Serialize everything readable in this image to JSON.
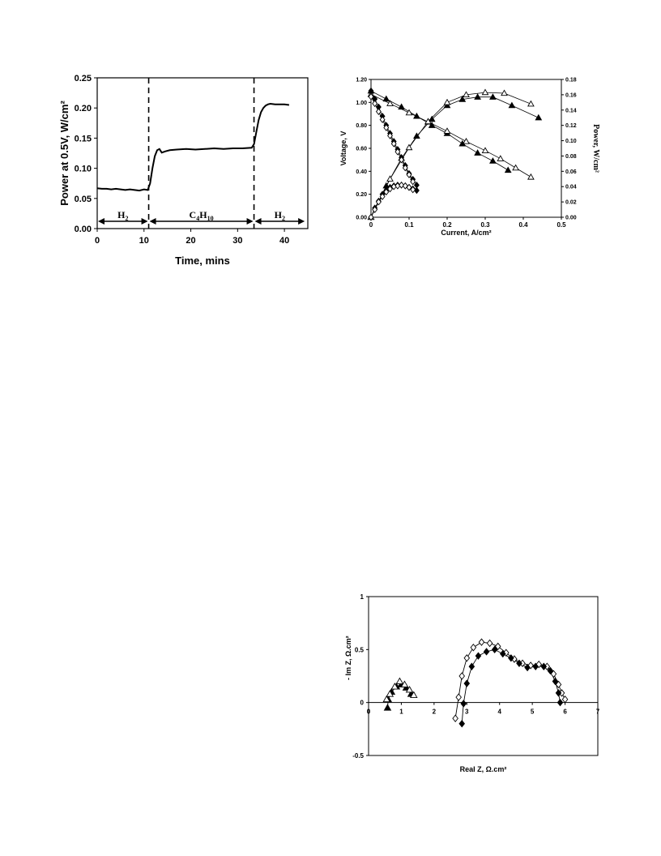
{
  "chart_data": [
    {
      "type": "line",
      "title": "",
      "xlabel": "Time, mins",
      "ylabel": "Power at 0.5V, W/cm²",
      "xlim": [
        0,
        45
      ],
      "ylim": [
        0,
        0.25
      ],
      "xticks": [
        0,
        10,
        20,
        30,
        40
      ],
      "yticks": [
        0.0,
        0.05,
        0.1,
        0.15,
        0.2,
        0.25
      ],
      "xtick_labels": [
        "0",
        "10",
        "20",
        "30",
        "40"
      ],
      "ytick_labels": [
        "0.00",
        "0.05",
        "0.10",
        "0.15",
        "0.20",
        "0.25"
      ],
      "grid": false,
      "series": [
        {
          "x": [
            0,
            1,
            2,
            3,
            4,
            5,
            6,
            7,
            8,
            9,
            10,
            10.8,
            11.3,
            11.8,
            12.3,
            12.8,
            13.3,
            13.8,
            14.5,
            15.5,
            17,
            19,
            21,
            23,
            25,
            27,
            29,
            31,
            33,
            33.5,
            34,
            34.5,
            35,
            35.5,
            36,
            36.5,
            37,
            38,
            39,
            40,
            41
          ],
          "y": [
            0.067,
            0.066,
            0.066,
            0.065,
            0.066,
            0.065,
            0.064,
            0.065,
            0.064,
            0.063,
            0.065,
            0.064,
            0.075,
            0.1,
            0.12,
            0.13,
            0.132,
            0.126,
            0.128,
            0.13,
            0.131,
            0.132,
            0.131,
            0.132,
            0.133,
            0.132,
            0.133,
            0.133,
            0.134,
            0.14,
            0.16,
            0.18,
            0.193,
            0.2,
            0.204,
            0.206,
            0.207,
            0.206,
            0.206,
            0.206,
            0.205
          ]
        }
      ],
      "vlines": [
        11,
        33.5
      ],
      "annotations": [
        {
          "base": "H",
          "sub": "2",
          "x_from": 0,
          "x_to": 11
        },
        {
          "base": "C",
          "sub": "4",
          "base2": "H",
          "sub2": "10",
          "x_from": 11,
          "x_to": 33.5
        },
        {
          "base": "H",
          "sub": "2",
          "x_from": 33.5,
          "x_to": 44.5
        }
      ]
    },
    {
      "type": "line",
      "title": "",
      "xlabel": "Current, A/cm²",
      "ylabel": "Voltage, V",
      "y2label": "Power, W/cm²",
      "xlim": [
        0,
        0.5
      ],
      "ylim": [
        0,
        1.2
      ],
      "y2lim": [
        0,
        0.18
      ],
      "xtick_labels": [
        "0",
        "0.1",
        "0.2",
        "0.3",
        "0.4",
        "0.5"
      ],
      "ytick_labels": [
        "0.00",
        "0.20",
        "0.40",
        "0.60",
        "0.80",
        "1.00",
        "1.20"
      ],
      "y2tick_labels": [
        "0.00",
        "0.02",
        "0.04",
        "0.06",
        "0.08",
        "0.10",
        "0.12",
        "0.14",
        "0.16",
        "0.18"
      ],
      "grid": false,
      "series": [
        {
          "marker": "filled-triangle",
          "axis": "left",
          "x": [
            0,
            0.04,
            0.08,
            0.12,
            0.16,
            0.2,
            0.24,
            0.28,
            0.32,
            0.36
          ],
          "y": [
            1.1,
            1.03,
            0.96,
            0.88,
            0.8,
            0.73,
            0.64,
            0.56,
            0.49,
            0.41
          ]
        },
        {
          "marker": "open-triangle",
          "axis": "left",
          "x": [
            0,
            0.05,
            0.1,
            0.15,
            0.2,
            0.25,
            0.3,
            0.34,
            0.38,
            0.42
          ],
          "y": [
            1.07,
            0.99,
            0.91,
            0.83,
            0.75,
            0.66,
            0.58,
            0.51,
            0.43,
            0.35
          ]
        },
        {
          "marker": "filled-triangle",
          "axis": "right",
          "x": [
            0,
            0.04,
            0.08,
            0.12,
            0.16,
            0.2,
            0.24,
            0.28,
            0.32,
            0.37,
            0.44
          ],
          "y": [
            0,
            0.041,
            0.077,
            0.106,
            0.128,
            0.146,
            0.154,
            0.157,
            0.157,
            0.146,
            0.13
          ]
        },
        {
          "marker": "open-triangle",
          "axis": "right",
          "x": [
            0,
            0.05,
            0.1,
            0.15,
            0.2,
            0.25,
            0.3,
            0.35,
            0.42
          ],
          "y": [
            0,
            0.05,
            0.091,
            0.125,
            0.15,
            0.16,
            0.163,
            0.162,
            0.148
          ]
        },
        {
          "marker": "filled-diamond",
          "axis": "left",
          "x": [
            0,
            0.01,
            0.02,
            0.03,
            0.04,
            0.05,
            0.06,
            0.07,
            0.08,
            0.09,
            0.1,
            0.11,
            0.12
          ],
          "y": [
            1.1,
            1.03,
            0.96,
            0.88,
            0.8,
            0.73,
            0.66,
            0.59,
            0.52,
            0.45,
            0.38,
            0.33,
            0.28
          ]
        },
        {
          "marker": "open-diamond",
          "axis": "left",
          "x": [
            0,
            0.01,
            0.02,
            0.03,
            0.04,
            0.05,
            0.06,
            0.07,
            0.08,
            0.09,
            0.1,
            0.11
          ],
          "y": [
            1.05,
            0.99,
            0.92,
            0.85,
            0.78,
            0.71,
            0.64,
            0.57,
            0.5,
            0.43,
            0.37,
            0.31
          ]
        },
        {
          "marker": "filled-diamond",
          "axis": "right",
          "x": [
            0,
            0.01,
            0.02,
            0.03,
            0.04,
            0.05,
            0.06,
            0.07,
            0.08,
            0.09,
            0.1,
            0.11,
            0.12
          ],
          "y": [
            0,
            0.012,
            0.021,
            0.03,
            0.035,
            0.039,
            0.041,
            0.042,
            0.042,
            0.041,
            0.039,
            0.037,
            0.035
          ]
        },
        {
          "marker": "open-diamond",
          "axis": "right",
          "x": [
            0,
            0.01,
            0.02,
            0.03,
            0.04,
            0.05,
            0.06,
            0.07,
            0.08,
            0.09,
            0.1,
            0.11
          ],
          "y": [
            0,
            0.01,
            0.02,
            0.027,
            0.033,
            0.037,
            0.04,
            0.041,
            0.042,
            0.041,
            0.039,
            0.036
          ]
        }
      ]
    },
    {
      "type": "scatter",
      "title": "",
      "xlabel": "Real Z, Ω.cm²",
      "ylabel": "- Im Z, Ω.cm²",
      "xlim": [
        0,
        7
      ],
      "ylim": [
        -0.5,
        1
      ],
      "xtick_labels": [
        "0",
        "1",
        "2",
        "3",
        "4",
        "5",
        "6",
        "7"
      ],
      "ytick_labels": [
        "-0.5",
        "0",
        "0.5",
        "1"
      ],
      "grid": false,
      "series": [
        {
          "marker": "filled-triangle",
          "line": true,
          "x": [
            0.58,
            0.6,
            0.7,
            0.85,
            1.0,
            1.15,
            1.3
          ],
          "y": [
            -0.05,
            0.03,
            0.1,
            0.15,
            0.17,
            0.14,
            0.08
          ]
        },
        {
          "marker": "open-triangle",
          "line": false,
          "x": [
            0.55,
            0.65,
            0.8,
            0.95,
            1.1,
            1.25,
            1.38
          ],
          "y": [
            0.03,
            0.08,
            0.15,
            0.2,
            0.17,
            0.12,
            0.07
          ]
        },
        {
          "marker": "open-diamond",
          "line": true,
          "x": [
            2.65,
            2.75,
            2.85,
            3.0,
            3.2,
            3.45,
            3.7,
            3.95,
            4.2,
            4.45,
            4.7,
            4.95,
            5.2,
            5.45,
            5.65,
            5.8,
            5.9,
            6.0
          ],
          "y": [
            -0.15,
            0.05,
            0.25,
            0.42,
            0.52,
            0.57,
            0.56,
            0.53,
            0.47,
            0.41,
            0.37,
            0.35,
            0.36,
            0.34,
            0.27,
            0.17,
            0.09,
            0.03
          ]
        },
        {
          "marker": "filled-diamond",
          "line": true,
          "x": [
            2.85,
            2.9,
            3.0,
            3.15,
            3.35,
            3.6,
            3.85,
            4.1,
            4.35,
            4.6,
            4.85,
            5.1,
            5.35,
            5.55,
            5.7,
            5.8,
            5.85
          ],
          "y": [
            -0.2,
            -0.01,
            0.18,
            0.34,
            0.44,
            0.48,
            0.5,
            0.46,
            0.42,
            0.37,
            0.33,
            0.34,
            0.34,
            0.3,
            0.2,
            0.09,
            0.0
          ]
        }
      ]
    }
  ]
}
